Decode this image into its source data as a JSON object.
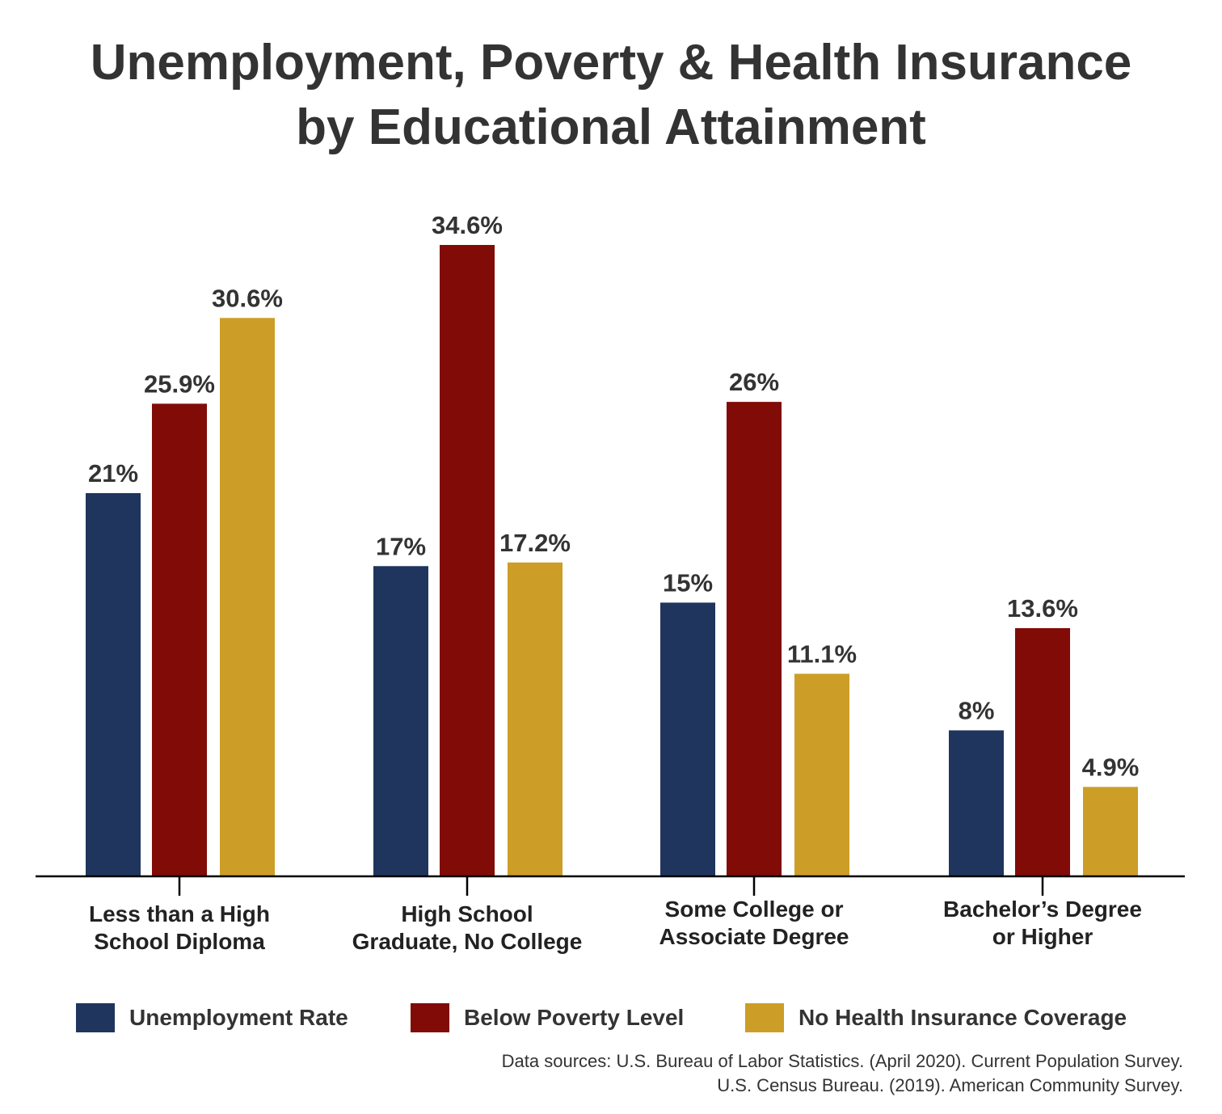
{
  "chart_data": {
    "type": "bar",
    "title": [
      "Unemployment, Poverty & Health Insurance",
      "by Educational Attainment"
    ],
    "categories": [
      [
        "Less than a High",
        "School Diploma"
      ],
      [
        "High School",
        "Graduate, No College"
      ],
      [
        "Some College or",
        "Associate Degree"
      ],
      [
        "Bachelor’s Degree",
        "or Higher"
      ]
    ],
    "series": [
      {
        "name": "Unemployment Rate",
        "color": "#1f355e",
        "values": [
          21,
          17,
          15,
          8
        ],
        "labels": [
          "21%",
          "17%",
          "15%",
          "8%"
        ]
      },
      {
        "name": "Below Poverty Level",
        "color": "#800b07",
        "values": [
          25.9,
          34.6,
          26,
          13.6
        ],
        "labels": [
          "25.9%",
          "34.6%",
          "26%",
          "13.6%"
        ]
      },
      {
        "name": "No Health Insurance Coverage",
        "color": "#cc9e27",
        "values": [
          30.6,
          17.2,
          11.1,
          4.9
        ],
        "labels": [
          "30.6%",
          "17.2%",
          "11.1%",
          "4.9%"
        ]
      }
    ],
    "ylim": [
      0,
      35
    ],
    "grid": false,
    "legend": "bottom",
    "source": [
      "Data sources: U.S. Bureau of Labor Statistics. (April 2020). Current Population Survey.",
      "U.S. Census Bureau. (2019). American Community Survey."
    ]
  }
}
